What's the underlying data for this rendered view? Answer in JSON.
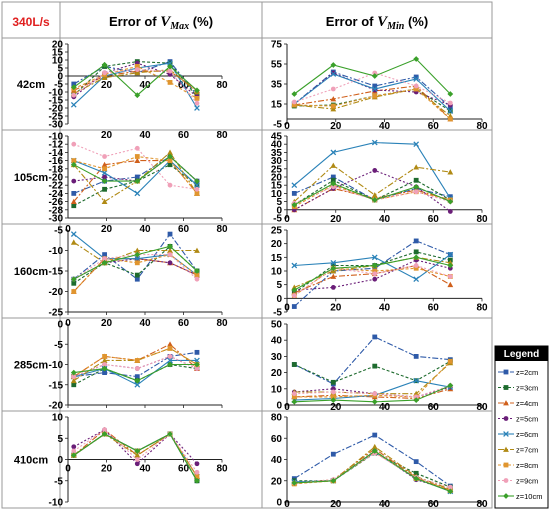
{
  "flow_label": "340L/s",
  "headers": {
    "vmax": {
      "prefix": "Error of ",
      "var": "V",
      "sub": "Max",
      "suffix": " (%)"
    },
    "vmin": {
      "prefix": "Error of ",
      "var": "V",
      "sub": "Min",
      "suffix": " (%)"
    }
  },
  "row_labels": [
    "42cm",
    "105cm",
    "160cm",
    "285cm",
    "410cm"
  ],
  "legend": {
    "title": "Legend",
    "items": [
      {
        "label": "z=2cm",
        "color": "#2e5aa8",
        "marker": "square",
        "dash": "6,2,2,2"
      },
      {
        "label": "z=3cm",
        "color": "#1e6b2e",
        "marker": "square",
        "dash": "3,2"
      },
      {
        "label": "z=4cm",
        "color": "#d0601c",
        "marker": "triangle",
        "dash": "6,2,2,2"
      },
      {
        "label": "z=5cm",
        "color": "#6a1e78",
        "marker": "circle",
        "dash": "2,2"
      },
      {
        "label": "z=6cm",
        "color": "#2a82b8",
        "marker": "x",
        "dash": ""
      },
      {
        "label": "z=7cm",
        "color": "#b08a14",
        "marker": "triangle",
        "dash": "6,2,2,2"
      },
      {
        "label": "z=8cm",
        "color": "#e0952e",
        "marker": "square",
        "dash": "3,2"
      },
      {
        "label": "z=9cm",
        "color": "#f0a0b8",
        "marker": "circle",
        "dash": "2,2"
      },
      {
        "label": "z=10cm",
        "color": "#3aa02a",
        "marker": "diamond",
        "dash": ""
      }
    ]
  },
  "chart_data": [
    {
      "type": "line",
      "row": "42cm",
      "metric": "vmax",
      "ylim": [
        -30,
        20
      ],
      "yticks": [
        -30,
        -25,
        -20,
        -15,
        -10,
        -5,
        0,
        5,
        10,
        15,
        20
      ],
      "xlim": [
        0,
        80
      ],
      "xticks": [
        20,
        40,
        60,
        80
      ],
      "x": [
        3,
        19,
        36,
        53,
        67
      ],
      "series": [
        {
          "values": [
            -5,
            6,
            2,
            9,
            -12
          ]
        },
        {
          "values": [
            -12,
            6,
            9,
            8,
            -13
          ]
        },
        {
          "values": [
            -9,
            0,
            3,
            3,
            -9
          ]
        },
        {
          "values": [
            -13,
            2,
            8,
            1,
            -13
          ]
        },
        {
          "values": [
            -18,
            0,
            5,
            8,
            -20
          ]
        },
        {
          "values": [
            -11,
            -1,
            2,
            4,
            -10
          ]
        },
        {
          "values": [
            -8,
            1,
            6,
            -4,
            -14
          ]
        },
        {
          "values": [
            -12,
            2,
            4,
            3,
            -17
          ]
        },
        {
          "values": [
            -7,
            7,
            -12,
            6,
            -9
          ]
        }
      ]
    },
    {
      "type": "line",
      "row": "42cm",
      "metric": "vmin",
      "ylim": [
        -5,
        75
      ],
      "yticks": [
        -5,
        15,
        35,
        55,
        75
      ],
      "xlim": [
        0,
        80
      ],
      "xticks": [
        0,
        20,
        40,
        60,
        80
      ],
      "x": [
        3,
        19,
        36,
        53,
        67
      ],
      "series": [
        {
          "values": [
            15,
            47,
            33,
            42,
            12
          ]
        },
        {
          "values": [
            13,
            14,
            23,
            30,
            8
          ]
        },
        {
          "values": [
            14,
            20,
            28,
            33,
            0
          ]
        },
        {
          "values": [
            15,
            46,
            29,
            27,
            14
          ]
        },
        {
          "values": [
            15,
            45,
            30,
            40,
            8
          ]
        },
        {
          "values": [
            14,
            10,
            22,
            30,
            3
          ]
        },
        {
          "values": [
            14,
            13,
            23,
            30,
            0
          ]
        },
        {
          "values": [
            17,
            30,
            46,
            33,
            16
          ]
        },
        {
          "values": [
            25,
            54,
            43,
            60,
            25
          ]
        }
      ]
    },
    {
      "type": "line",
      "row": "105cm",
      "metric": "vmax",
      "ylim": [
        -30,
        -10
      ],
      "yticks": [
        -30,
        -28,
        -26,
        -24,
        -22,
        -20,
        -18,
        -16,
        -14,
        -12,
        -10
      ],
      "xlim": [
        0,
        80
      ],
      "xticks": [
        20,
        40,
        60,
        80
      ],
      "x": [
        3,
        19,
        36,
        53,
        67
      ],
      "series": [
        {
          "values": [
            -24,
            -21,
            -20,
            -15,
            -21
          ]
        },
        {
          "values": [
            -27,
            -23,
            -21,
            -17,
            -22
          ]
        },
        {
          "values": [
            -26,
            -17,
            -16,
            -16,
            -24
          ]
        },
        {
          "values": [
            -21,
            -20,
            -21,
            -15,
            -21
          ]
        },
        {
          "values": [
            -16,
            -19,
            -24,
            -16,
            -22
          ]
        },
        {
          "values": [
            -17,
            -26,
            -21,
            -14,
            -24
          ]
        },
        {
          "values": [
            -16,
            -18,
            -15,
            -16,
            -24
          ]
        },
        {
          "values": [
            -12,
            -15,
            -13,
            -22,
            -23
          ]
        },
        {
          "values": [
            -17,
            -21,
            -21,
            -15,
            -21
          ]
        }
      ]
    },
    {
      "type": "line",
      "row": "105cm",
      "metric": "vmin",
      "ylim": [
        -5,
        45
      ],
      "yticks": [
        -5,
        0,
        5,
        10,
        15,
        20,
        25,
        30,
        35,
        40,
        45
      ],
      "xlim": [
        0,
        80
      ],
      "xticks": [
        0,
        20,
        40,
        60,
        80
      ],
      "x": [
        3,
        19,
        36,
        53,
        67
      ],
      "series": [
        {
          "values": [
            10,
            20,
            6,
            13,
            8
          ]
        },
        {
          "values": [
            3,
            18,
            6,
            18,
            6
          ]
        },
        {
          "values": [
            0,
            13,
            7,
            12,
            6
          ]
        },
        {
          "values": [
            0,
            13,
            24,
            14,
            -1
          ]
        },
        {
          "values": [
            15,
            35,
            41,
            40,
            7
          ]
        },
        {
          "values": [
            5,
            27,
            9,
            26,
            23
          ]
        },
        {
          "values": [
            2,
            15,
            6,
            11,
            6
          ]
        },
        {
          "values": [
            4,
            14,
            6,
            11,
            5
          ]
        },
        {
          "values": [
            3,
            16,
            6,
            14,
            5
          ]
        }
      ]
    },
    {
      "type": "line",
      "row": "160cm",
      "metric": "vmax",
      "ylim": [
        -25,
        -5
      ],
      "yticks": [
        -25,
        -20,
        -15,
        -10,
        -5
      ],
      "xlim": [
        0,
        80
      ],
      "xticks": [
        0,
        20,
        40,
        60,
        80
      ],
      "x": [
        3,
        19,
        36,
        53,
        67
      ],
      "series": [
        {
          "values": [
            -17,
            -11,
            -17,
            -6,
            -15
          ]
        },
        {
          "values": [
            -18,
            -13,
            -16,
            -9,
            -15
          ]
        },
        {
          "values": [
            -20,
            -12,
            -12,
            -13,
            -16
          ]
        },
        {
          "values": [
            -17,
            -13,
            -12,
            -13,
            -16
          ]
        },
        {
          "values": [
            -6,
            -12,
            -12,
            -11,
            -16
          ]
        },
        {
          "values": [
            -8,
            -13,
            -10,
            -10,
            -10
          ]
        },
        {
          "values": [
            -20,
            -12,
            -13,
            -11,
            -16
          ]
        },
        {
          "values": [
            -17,
            -12,
            -11,
            -11,
            -17
          ]
        },
        {
          "values": [
            -17,
            -13,
            -11,
            -9,
            -15
          ]
        }
      ]
    },
    {
      "type": "line",
      "row": "160cm",
      "metric": "vmin",
      "ylim": [
        -5,
        25
      ],
      "yticks": [
        -5,
        0,
        5,
        10,
        15,
        20,
        25
      ],
      "xlim": [
        0,
        80
      ],
      "xticks": [
        0,
        20,
        40,
        60,
        80
      ],
      "x": [
        3,
        19,
        36,
        53,
        67
      ],
      "series": [
        {
          "values": [
            -3,
            10,
            11,
            21,
            16
          ]
        },
        {
          "values": [
            2,
            12,
            12,
            17,
            14
          ]
        },
        {
          "values": [
            2,
            8,
            9,
            12,
            5
          ]
        },
        {
          "values": [
            3,
            4,
            7,
            14,
            11
          ]
        },
        {
          "values": [
            12,
            13,
            15,
            7,
            16
          ]
        },
        {
          "values": [
            4,
            10,
            12,
            15,
            13
          ]
        },
        {
          "values": [
            1,
            11,
            10,
            11,
            8
          ]
        },
        {
          "values": [
            1,
            11,
            9,
            12,
            8
          ]
        },
        {
          "values": [
            3,
            11,
            12,
            15,
            12
          ]
        }
      ]
    },
    {
      "type": "line",
      "row": "285cm",
      "metric": "vmax",
      "ylim": [
        -20,
        0
      ],
      "yticks": [
        -20,
        -15,
        -10,
        -5,
        0
      ],
      "xlim": [
        0,
        80
      ],
      "xticks": [
        0,
        20,
        40,
        60,
        80
      ],
      "x": [
        3,
        19,
        36,
        53,
        67
      ],
      "series": [
        {
          "values": [
            -13,
            -12,
            -13,
            -8,
            -7
          ]
        },
        {
          "values": [
            -15,
            -11,
            -14,
            -10,
            -11
          ]
        },
        {
          "values": [
            -13,
            -8,
            -9,
            -5,
            -11
          ]
        },
        {
          "values": [
            -13,
            -10,
            -11,
            -8,
            -11
          ]
        },
        {
          "values": [
            -13,
            -11,
            -15,
            -9,
            -9
          ]
        },
        {
          "values": [
            -14,
            -9,
            -9,
            -6,
            -10
          ]
        },
        {
          "values": [
            -13,
            -8,
            -9,
            -6,
            -10
          ]
        },
        {
          "values": [
            -13,
            -10,
            -11,
            -8,
            -11
          ]
        },
        {
          "values": [
            -12,
            -11,
            -14,
            -10,
            -10
          ]
        }
      ]
    },
    {
      "type": "line",
      "row": "285cm",
      "metric": "vmin",
      "ylim": [
        0,
        50
      ],
      "yticks": [
        0,
        10,
        20,
        30,
        40,
        50
      ],
      "xlim": [
        0,
        80
      ],
      "xticks": [
        0,
        20,
        40,
        60,
        80
      ],
      "x": [
        3,
        19,
        36,
        53,
        67
      ],
      "series": [
        {
          "values": [
            25,
            13,
            42,
            30,
            28
          ]
        },
        {
          "values": [
            25,
            14,
            24,
            15,
            27
          ]
        },
        {
          "values": [
            5,
            6,
            5,
            4,
            10
          ]
        },
        {
          "values": [
            8,
            10,
            7,
            5,
            11
          ]
        },
        {
          "values": [
            3,
            4,
            6,
            15,
            11
          ]
        },
        {
          "values": [
            8,
            8,
            7,
            7,
            26
          ]
        },
        {
          "values": [
            5,
            5,
            6,
            5,
            27
          ]
        },
        {
          "values": [
            7,
            8,
            7,
            5,
            12
          ]
        },
        {
          "values": [
            2,
            3,
            2,
            3,
            12
          ]
        }
      ]
    },
    {
      "type": "line",
      "row": "410cm",
      "metric": "vmax",
      "ylim": [
        -10,
        10
      ],
      "yticks": [
        -10,
        -5,
        0,
        5,
        10
      ],
      "xlim": [
        0,
        80
      ],
      "xticks": [
        0,
        20,
        40,
        60,
        80
      ],
      "x": [
        3,
        19,
        36,
        53,
        67
      ],
      "series": [
        {
          "values": [
            1,
            6,
            2,
            6,
            -5
          ]
        },
        {
          "values": [
            1,
            6,
            2,
            6,
            -5
          ]
        },
        {
          "values": [
            1,
            7,
            1,
            6,
            -4
          ]
        },
        {
          "values": [
            3,
            7,
            -1,
            6,
            -1
          ]
        },
        {
          "values": [
            1,
            6,
            2,
            6,
            -4
          ]
        },
        {
          "values": [
            1,
            6,
            1,
            6,
            -4
          ]
        },
        {
          "values": [
            1,
            6,
            2,
            6,
            -4
          ]
        },
        {
          "values": [
            2,
            7,
            0,
            6,
            -3
          ]
        },
        {
          "values": [
            1,
            6,
            2,
            6,
            -5
          ]
        }
      ]
    },
    {
      "type": "line",
      "row": "410cm",
      "metric": "vmin",
      "ylim": [
        0,
        80
      ],
      "yticks": [
        0,
        20,
        40,
        60,
        80
      ],
      "xlim": [
        0,
        80
      ],
      "xticks": [
        0,
        20,
        40,
        60,
        80
      ],
      "x": [
        3,
        19,
        36,
        53,
        67
      ],
      "series": [
        {
          "values": [
            22,
            45,
            63,
            38,
            15
          ]
        },
        {
          "values": [
            20,
            20,
            46,
            27,
            14
          ]
        },
        {
          "values": [
            18,
            21,
            50,
            23,
            11
          ]
        },
        {
          "values": [
            18,
            20,
            48,
            21,
            11
          ]
        },
        {
          "values": [
            19,
            20,
            47,
            22,
            10
          ]
        },
        {
          "values": [
            18,
            20,
            52,
            24,
            12
          ]
        },
        {
          "values": [
            17,
            20,
            47,
            22,
            11
          ]
        },
        {
          "values": [
            18,
            21,
            46,
            23,
            14
          ]
        },
        {
          "values": [
            18,
            20,
            48,
            22,
            10
          ]
        }
      ]
    }
  ]
}
